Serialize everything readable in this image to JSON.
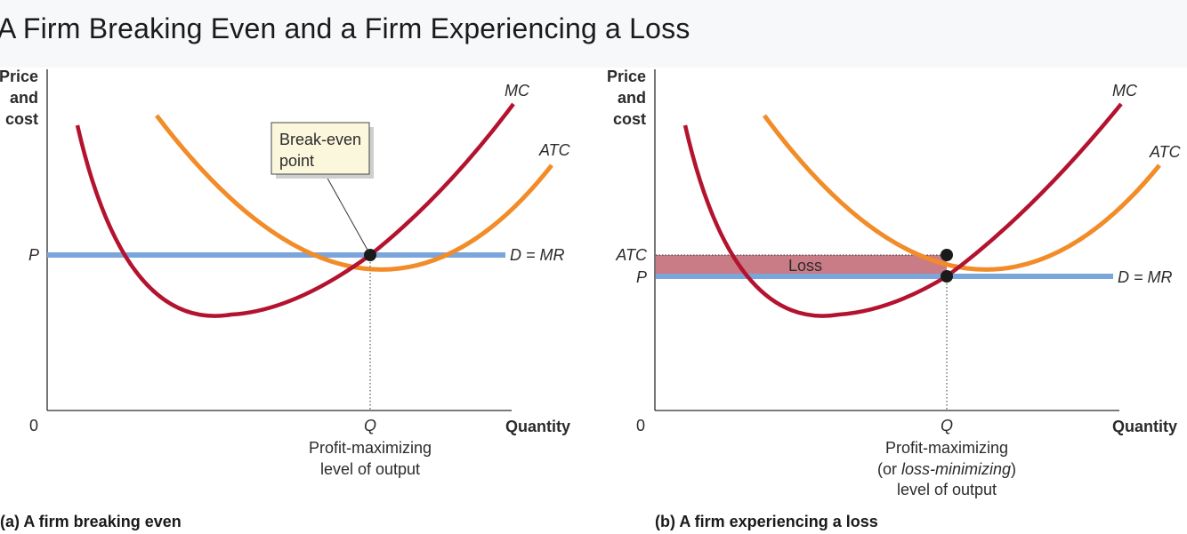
{
  "title": "A Firm Breaking Even and a Firm Experiencing a Loss",
  "panel_a": {
    "y_axis_label": [
      "Price",
      "and",
      "cost"
    ],
    "origin": "0",
    "x_axis_label": "Quantity",
    "x_tick": "Q",
    "x_tick_note": [
      "Profit-maximizing",
      "level of output"
    ],
    "y_tick_p": "P",
    "mc_label": "MC",
    "atc_label": "ATC",
    "demand_label": "D = MR",
    "callout": [
      "Break-even",
      "point"
    ],
    "caption": "(a) A firm breaking even"
  },
  "panel_b": {
    "y_axis_label": [
      "Price",
      "and",
      "cost"
    ],
    "origin": "0",
    "x_axis_label": "Quantity",
    "x_tick": "Q",
    "x_tick_note_line1": "Profit-maximizing",
    "x_tick_note_line2_prefix": "(or ",
    "x_tick_note_line2_italic": "loss-minimizing",
    "x_tick_note_line2_suffix": ")",
    "x_tick_note_line3": "level of output",
    "y_tick_atc": "ATC",
    "y_tick_p": "P",
    "mc_label": "MC",
    "atc_label": "ATC",
    "demand_label": "D = MR",
    "loss_label": "Loss",
    "caption": "(b) A firm experiencing a loss"
  },
  "colors": {
    "mc": "#b3132f",
    "atc": "#f28c28",
    "demand": "#7aa6dc",
    "loss_area": "#c97b86",
    "point": "#1a1a1a",
    "axis": "#2b2b2b"
  }
}
